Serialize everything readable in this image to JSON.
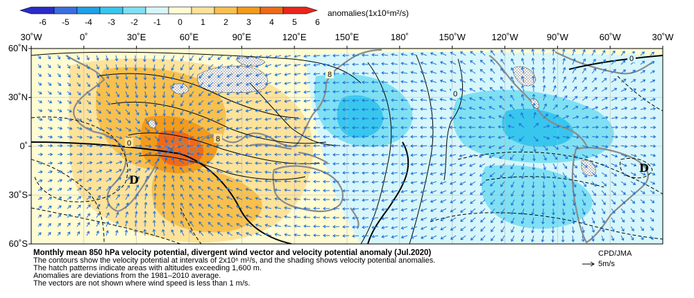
{
  "colorbar": {
    "ticks": [
      "-6",
      "-5",
      "-4",
      "-3",
      "-2",
      "-1",
      "0",
      "1",
      "2",
      "3",
      "4",
      "5",
      "6"
    ],
    "colors": [
      "#2b2bc9",
      "#3a6fe0",
      "#1ea0e8",
      "#38c6ee",
      "#7fe0f4",
      "#d6f6fb",
      "#fffbd2",
      "#fde29a",
      "#f8c04e",
      "#f39b1b",
      "#ef6a18",
      "#e9261a"
    ],
    "units_label": "anomalies(1x10⁶m²/s)"
  },
  "axes": {
    "lon_labels": [
      "30˚W",
      "0˚",
      "30˚E",
      "60˚E",
      "90˚E",
      "120˚E",
      "150˚E",
      "180˚",
      "150˚W",
      "120˚W",
      "90˚W",
      "60˚W",
      "30˚W"
    ],
    "lat_labels": [
      "60˚N",
      "30˚N",
      "0˚",
      "30˚S",
      "60˚S"
    ]
  },
  "map": {
    "contour_labels": [
      "0",
      "8",
      "8",
      "0",
      "0"
    ],
    "center_labels": [
      "D",
      "D"
    ]
  },
  "caption": {
    "title": "Monthly mean 850 hPa velocity potential, divergent wind vector and velocity potential anomaly (Jul.2020)",
    "line1": "The contours show the velocity potential at intervals of 2x10⁶ m²/s, and the shading shows velocity potential anomalies.",
    "line2": "The hatch patterns indicate areas with altitudes exceeding 1,600 m.",
    "line3": "Anomalies are deviations from the 1981–2010 average.",
    "line4": "The vectors are not shown where wind speed is less than 1 m/s."
  },
  "credit": "CPD/JMA",
  "reference_vector_label": "5m/s"
}
